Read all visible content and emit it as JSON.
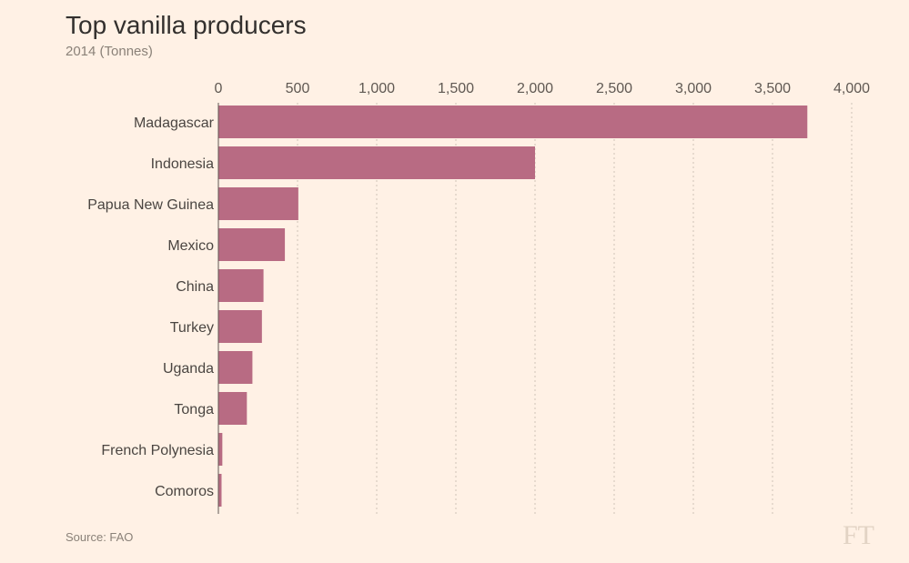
{
  "chart_data": {
    "type": "bar",
    "orientation": "horizontal",
    "title": "Top vanilla producers",
    "subtitle": "2014 (Tonnes)",
    "categories": [
      "Madagascar",
      "Indonesia",
      "Papua New Guinea",
      "Mexico",
      "China",
      "Turkey",
      "Uganda",
      "Tonga",
      "French Polynesia",
      "Comoros"
    ],
    "values": [
      3720,
      2000,
      505,
      420,
      285,
      275,
      215,
      180,
      25,
      20
    ],
    "xlim": [
      0,
      4000
    ],
    "xticks": [
      0,
      500,
      1000,
      1500,
      2000,
      2500,
      3000,
      3500,
      4000
    ],
    "xtick_labels": [
      "0",
      "500",
      "1,000",
      "1,500",
      "2,000",
      "2,500",
      "3,000",
      "3,500",
      "4,000"
    ],
    "axis_position": "top",
    "grid": true,
    "bar_color": "#b86b83"
  },
  "source": "Source: FAO",
  "logo": "FT"
}
